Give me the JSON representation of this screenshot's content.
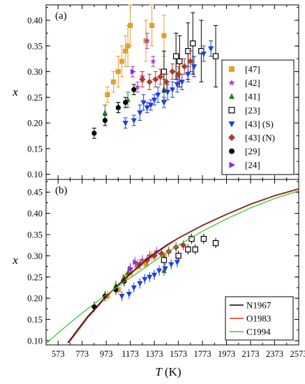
{
  "chart_data": [
    {
      "panel_label": "(a)",
      "type": "scatter",
      "xlabel": "",
      "ylabel": "x",
      "xlim": [
        473,
        2573
      ],
      "ylim": [
        0.09,
        0.43
      ],
      "yticks": [
        "0.10",
        "0.15",
        "0.20",
        "0.25",
        "0.30",
        "0.35",
        "0.40"
      ],
      "legend_position": "right",
      "series": [
        {
          "name": "[47]",
          "marker": "square-filled",
          "color": "#e0a030",
          "points": [
            [
              983,
              0.255,
              0.015
            ],
            [
              1033,
              0.28,
              0.02
            ],
            [
              1073,
              0.3,
              0.03
            ],
            [
              1103,
              0.32,
              0.03
            ],
            [
              1133,
              0.34,
              0.03
            ],
            [
              1153,
              0.35,
              0.04
            ],
            [
              1173,
              0.39,
              0.04
            ],
            [
              1303,
              0.36,
              0.04
            ],
            [
              1353,
              0.39,
              0.04
            ],
            [
              1453,
              0.37,
              0.04
            ]
          ]
        },
        {
          "name": "[42]",
          "marker": "star",
          "color": "#b040c0",
          "points": [
            [
              1233,
              0.27,
              0.01
            ],
            [
              1273,
              0.29,
              0.01
            ],
            [
              1313,
              0.36,
              0.015
            ],
            [
              1363,
              0.32,
              0.01
            ]
          ]
        },
        {
          "name": "[41]",
          "marker": "triangle-up",
          "color": "#2a7a2a",
          "points": [
            [
              963,
              0.22,
              0.015
            ],
            [
              1073,
              0.23,
              0.01
            ],
            [
              1153,
              0.245,
              0.015
            ],
            [
              1453,
              0.265,
              0.02
            ]
          ]
        },
        {
          "name": "[23]",
          "marker": "square-open",
          "color": "#000000",
          "points": [
            [
              1453,
              0.3,
              0.04
            ],
            [
              1553,
              0.33,
              0.045
            ],
            [
              1583,
              0.32,
              0.05
            ],
            [
              1653,
              0.34,
              0.055
            ],
            [
              1693,
              0.355,
              0.06
            ],
            [
              1763,
              0.34,
              0.06
            ],
            [
              1883,
              0.33,
              0.06
            ]
          ]
        },
        {
          "name": "[43] (S)",
          "marker": "triangle-down",
          "color": "#1e3ee6",
          "points": [
            [
              1133,
              0.2,
              0.01
            ],
            [
              1203,
              0.205,
              0.01
            ],
            [
              1253,
              0.22,
              0.015
            ],
            [
              1283,
              0.24,
              0.015
            ],
            [
              1313,
              0.23,
              0.01
            ],
            [
              1343,
              0.235,
              0.01
            ],
            [
              1373,
              0.245,
              0.01
            ],
            [
              1403,
              0.255,
              0.015
            ],
            [
              1453,
              0.24,
              0.01
            ],
            [
              1483,
              0.26,
              0.015
            ],
            [
              1523,
              0.265,
              0.015
            ],
            [
              1563,
              0.275,
              0.015
            ],
            [
              1603,
              0.28,
              0.015
            ],
            [
              1653,
              0.295,
              0.015
            ],
            [
              1703,
              0.31,
              0.02
            ],
            [
              1783,
              0.335,
              0.015
            ],
            [
              1843,
              0.345,
              0.015
            ]
          ]
        },
        {
          "name": "[43] (N)",
          "marker": "diamond",
          "color": "#b03a2e",
          "points": [
            [
              1273,
              0.285,
              0.015
            ],
            [
              1333,
              0.28,
              0.015
            ],
            [
              1383,
              0.285,
              0.015
            ],
            [
              1423,
              0.29,
              0.015
            ],
            [
              1473,
              0.28,
              0.015
            ],
            [
              1523,
              0.3,
              0.015
            ],
            [
              1573,
              0.295,
              0.015
            ],
            [
              1623,
              0.31,
              0.015
            ],
            [
              1673,
              0.32,
              0.02
            ]
          ]
        },
        {
          "name": "[29]",
          "marker": "circle",
          "color": "#000000",
          "points": [
            [
              873,
              0.18,
              0.01
            ],
            [
              963,
              0.205,
              0.01
            ],
            [
              1073,
              0.23,
              0.01
            ],
            [
              1133,
              0.24,
              0.01
            ],
            [
              1203,
              0.265,
              0.01
            ]
          ]
        },
        {
          "name": "[24]",
          "marker": "triangle-right",
          "color": "#8a2be2",
          "points": [
            [
              1193,
              0.3,
              0.01
            ]
          ]
        }
      ]
    },
    {
      "panel_label": "(b)",
      "type": "line",
      "xlabel": "T",
      "xunit": "(K)",
      "ylabel": "x",
      "xlim": [
        473,
        2573
      ],
      "ylim": [
        0.09,
        0.48
      ],
      "xticks": [
        "573",
        "773",
        "973",
        "1173",
        "1373",
        "1573",
        "1773",
        "1973",
        "2173",
        "2373",
        "2573"
      ],
      "yticks": [
        "0.10",
        "0.15",
        "0.20",
        "0.25",
        "0.30",
        "0.35",
        "0.40",
        "0.45"
      ],
      "legend_position": "bottom-right",
      "scatter_overlay": [
        {
          "marker": "square-filled",
          "color": "#e0a030",
          "points": [
            [
              983,
              0.205
            ],
            [
              1073,
              0.22
            ],
            [
              1133,
              0.25
            ],
            [
              1173,
              0.26
            ],
            [
              1233,
              0.275
            ],
            [
              1303,
              0.28
            ],
            [
              1353,
              0.3
            ],
            [
              1453,
              0.3
            ]
          ]
        },
        {
          "marker": "star",
          "color": "#b040c0",
          "points": [
            [
              1173,
              0.27
            ],
            [
              1233,
              0.28
            ],
            [
              1273,
              0.29
            ],
            [
              1333,
              0.3
            ],
            [
              1393,
              0.31
            ]
          ]
        },
        {
          "marker": "triangle-up",
          "color": "#2a7a2a",
          "points": [
            [
              1053,
              0.23
            ],
            [
              1113,
              0.245
            ],
            [
              1153,
              0.26
            ],
            [
              1453,
              0.265
            ]
          ]
        },
        {
          "marker": "square-open",
          "color": "#000000",
          "points": [
            [
              1453,
              0.29
            ],
            [
              1573,
              0.3
            ],
            [
              1653,
              0.315
            ],
            [
              1683,
              0.34
            ],
            [
              1713,
              0.315
            ],
            [
              1783,
              0.34
            ],
            [
              1883,
              0.33
            ]
          ]
        },
        {
          "marker": "triangle-down",
          "color": "#1e3ee6",
          "points": [
            [
              1103,
              0.205
            ],
            [
              1163,
              0.21
            ],
            [
              1203,
              0.225
            ],
            [
              1253,
              0.235
            ],
            [
              1293,
              0.245
            ],
            [
              1333,
              0.25
            ],
            [
              1373,
              0.255
            ],
            [
              1413,
              0.265
            ],
            [
              1463,
              0.27
            ],
            [
              1513,
              0.28
            ],
            [
              1563,
              0.285
            ]
          ]
        },
        {
          "marker": "diamond",
          "color": "#b03a2e",
          "points": [
            [
              1253,
              0.28
            ],
            [
              1313,
              0.29
            ],
            [
              1373,
              0.3
            ],
            [
              1433,
              0.305
            ],
            [
              1493,
              0.31
            ],
            [
              1553,
              0.32
            ],
            [
              1613,
              0.325
            ]
          ]
        },
        {
          "marker": "circle",
          "color": "#000000",
          "points": [
            [
              873,
              0.18
            ],
            [
              963,
              0.205
            ],
            [
              1053,
              0.22
            ],
            [
              1123,
              0.24
            ]
          ]
        },
        {
          "marker": "triangle-right",
          "color": "#8a2be2",
          "points": [
            [
              1173,
              0.27
            ],
            [
              1213,
              0.285
            ]
          ]
        }
      ],
      "series": [
        {
          "name": "N1967",
          "color": "#000000",
          "x": [
            653,
            733,
            813,
            893,
            973,
            1073,
            1173,
            1273,
            1373,
            1473,
            1573,
            1773,
            1973,
            2173,
            2373,
            2573
          ],
          "y": [
            0.095,
            0.125,
            0.155,
            0.18,
            0.205,
            0.232,
            0.258,
            0.283,
            0.305,
            0.325,
            0.342,
            0.372,
            0.398,
            0.422,
            0.442,
            0.458
          ]
        },
        {
          "name": "O1983",
          "color": "#d03020",
          "x": [
            663,
            743,
            823,
            903,
            973,
            1073,
            1173,
            1273,
            1373,
            1473,
            1573,
            1773,
            1973,
            2173,
            2373,
            2573
          ],
          "y": [
            0.095,
            0.125,
            0.155,
            0.18,
            0.203,
            0.23,
            0.256,
            0.281,
            0.303,
            0.323,
            0.341,
            0.371,
            0.397,
            0.421,
            0.441,
            0.457
          ]
        },
        {
          "name": "C1994",
          "color": "#3cc83c",
          "x": [
            473,
            573,
            673,
            773,
            873,
            973,
            1073,
            1173,
            1273,
            1373,
            1473,
            1573,
            1773,
            1973,
            2173,
            2373,
            2573
          ],
          "y": [
            0.093,
            0.118,
            0.142,
            0.165,
            0.187,
            0.208,
            0.228,
            0.248,
            0.268,
            0.288,
            0.307,
            0.325,
            0.358,
            0.387,
            0.413,
            0.435,
            0.453
          ]
        }
      ]
    }
  ]
}
